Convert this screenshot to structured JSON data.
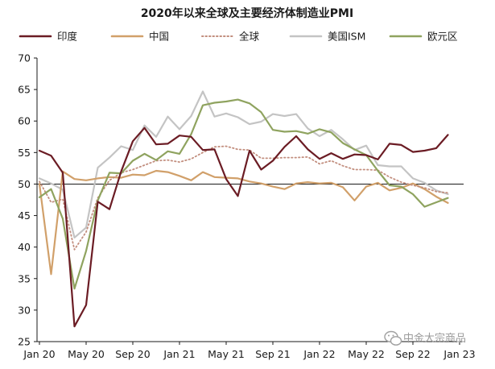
{
  "chart_data": {
    "type": "line",
    "title": "2020年以来全球及主要经济体制造业PMI",
    "xlabel": "",
    "ylabel": "",
    "ylim": [
      25,
      70
    ],
    "yticks": [
      25,
      30,
      35,
      40,
      45,
      50,
      55,
      60,
      65,
      70
    ],
    "reference_line": 50,
    "legend_position": "top",
    "xtick_labels": [
      "Jan 20",
      "May 20",
      "Sep 20",
      "Jan 21",
      "May 21",
      "Sep 21",
      "Jan 22",
      "May 22",
      "Sep 22",
      "Jan 23"
    ],
    "x": [
      "Jan 20",
      "Feb 20",
      "Mar 20",
      "Apr 20",
      "May 20",
      "Jun 20",
      "Jul 20",
      "Aug 20",
      "Sep 20",
      "Oct 20",
      "Nov 20",
      "Dec 20",
      "Jan 21",
      "Feb 21",
      "Mar 21",
      "Apr 21",
      "May 21",
      "Jun 21",
      "Jul 21",
      "Aug 21",
      "Sep 21",
      "Oct 21",
      "Nov 21",
      "Dec 21",
      "Jan 22",
      "Feb 22",
      "Mar 22",
      "Apr 22",
      "May 22",
      "Jun 22",
      "Jul 22",
      "Aug 22",
      "Sep 22",
      "Oct 22",
      "Nov 22",
      "Dec 22",
      "Jan 23"
    ],
    "series": [
      {
        "name": "印度",
        "color": "#6b1c24",
        "dash": "solid",
        "values": [
          55.3,
          54.5,
          51.8,
          27.4,
          30.8,
          47.2,
          46.0,
          52.0,
          56.8,
          58.9,
          56.3,
          56.4,
          57.7,
          57.5,
          55.4,
          55.5,
          50.8,
          48.1,
          55.3,
          52.3,
          53.7,
          55.9,
          57.6,
          55.5,
          54.0,
          54.9,
          54.0,
          54.7,
          54.6,
          53.9,
          56.4,
          56.2,
          55.1,
          55.3,
          55.7,
          57.8,
          null
        ]
      },
      {
        "name": "中国",
        "color": "#d1a06a",
        "dash": "solid",
        "values": [
          50.0,
          35.7,
          52.0,
          50.8,
          50.6,
          50.9,
          51.1,
          51.0,
          51.5,
          51.4,
          52.1,
          51.9,
          51.3,
          50.6,
          51.9,
          51.1,
          51.0,
          50.9,
          50.4,
          50.1,
          49.6,
          49.2,
          50.1,
          50.3,
          50.1,
          50.2,
          49.5,
          47.4,
          49.6,
          50.2,
          49.0,
          49.4,
          50.1,
          49.2,
          48.0,
          47.0,
          null
        ]
      },
      {
        "name": "全球",
        "color": "#c28e7e",
        "dash": "dotted",
        "values": [
          50.4,
          47.1,
          47.6,
          39.6,
          42.4,
          47.8,
          50.6,
          51.8,
          52.3,
          53.0,
          53.7,
          53.8,
          53.5,
          54.0,
          55.0,
          55.9,
          56.0,
          55.5,
          55.4,
          54.1,
          54.1,
          54.2,
          54.2,
          54.3,
          53.2,
          53.7,
          52.9,
          52.3,
          52.3,
          52.2,
          51.1,
          50.3,
          49.8,
          49.4,
          48.8,
          48.6,
          null
        ]
      },
      {
        "name": "美国ISM",
        "color": "#c4c4c4",
        "dash": "solid",
        "values": [
          50.9,
          50.1,
          49.1,
          41.5,
          43.1,
          52.6,
          54.2,
          56.0,
          55.4,
          59.3,
          57.5,
          60.7,
          58.7,
          60.8,
          64.7,
          60.7,
          61.2,
          60.6,
          59.5,
          59.9,
          61.1,
          60.8,
          61.1,
          58.8,
          57.6,
          58.6,
          57.1,
          55.4,
          56.1,
          53.0,
          52.8,
          52.8,
          50.9,
          50.2,
          49.0,
          48.4,
          null
        ]
      },
      {
        "name": "欧元区",
        "color": "#8fa35f",
        "dash": "solid",
        "values": [
          47.9,
          49.2,
          44.5,
          33.4,
          39.4,
          47.4,
          51.8,
          51.7,
          53.7,
          54.8,
          53.8,
          55.2,
          54.8,
          57.9,
          62.5,
          62.9,
          63.1,
          63.4,
          62.8,
          61.4,
          58.6,
          58.3,
          58.4,
          58.0,
          58.7,
          58.2,
          56.5,
          55.5,
          54.6,
          52.1,
          49.8,
          49.6,
          48.4,
          46.4,
          47.1,
          47.8,
          null
        ]
      }
    ]
  },
  "watermark": {
    "text": "中金大宗商品"
  }
}
